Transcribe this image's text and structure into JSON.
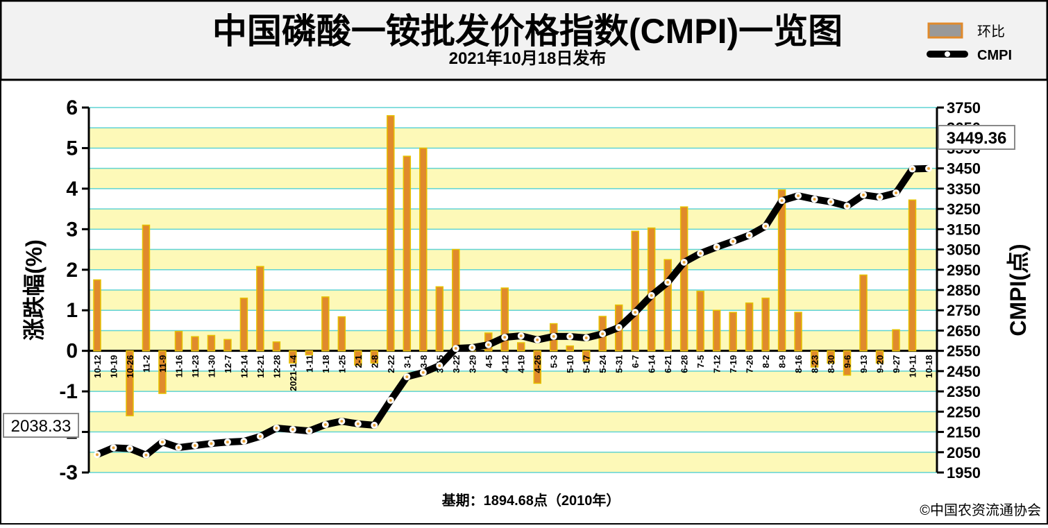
{
  "chart_data": {
    "type": "bar-line",
    "title": "中国磷酸一铵批发价格指数(CMPI)一览图",
    "subtitle": "2021年10月18日发布",
    "ylabel": "涨跌幅(%)",
    "y2label": "CMPI(点)",
    "note": "基期：1894.68点（2010年）",
    "source": "©中国农资流通协会",
    "categories": [
      "10-12",
      "10-19",
      "10-26",
      "11-2",
      "11-9",
      "11-16",
      "11-23",
      "11-30",
      "12-7",
      "12-14",
      "12-21",
      "12-28",
      "2021-1-4",
      "1-11",
      "1-18",
      "1-25",
      "2-1",
      "2-8",
      "2-22",
      "3-1",
      "3-8",
      "3-15",
      "3-22",
      "3-29",
      "4-5",
      "4-12",
      "4-19",
      "4-26",
      "5-3",
      "5-10",
      "5-17",
      "5-24",
      "5-31",
      "6-7",
      "6-14",
      "6-21",
      "6-28",
      "7-5",
      "7-12",
      "7-19",
      "7-26",
      "8-2",
      "8-9",
      "8-16",
      "8-23",
      "8-30",
      "9-6",
      "9-13",
      "9-20",
      "9-27",
      "10-11",
      "10-18"
    ],
    "series": [
      {
        "name": "环比",
        "color": "#e08a2c",
        "values": [
          1.75,
          0,
          -1.6,
          3.1,
          -1.05,
          0.48,
          0.35,
          0.38,
          0.28,
          1.3,
          2.08,
          0.22,
          -0.3,
          -0.1,
          1.33,
          0.84,
          -0.35,
          -0.3,
          5.8,
          4.8,
          5.0,
          1.58,
          2.5,
          0.05,
          0.44,
          1.55,
          0.2,
          -0.8,
          0.67,
          0.12,
          -0.25,
          0.85,
          1.13,
          2.95,
          3.03,
          2.25,
          3.55,
          1.47,
          1.0,
          0.95,
          1.18,
          1.3,
          3.97,
          0.95,
          -0.4,
          -0.3,
          -0.6,
          1.87,
          -0.3,
          0.52,
          3.72,
          0
        ]
      },
      {
        "name": "CMPI",
        "color": "#000000",
        "axis": "y2",
        "values": [
          2038.33,
          2072,
          2068,
          2036,
          2100,
          2073,
          2083,
          2093,
          2100,
          2104,
          2128,
          2169,
          2162,
          2155,
          2186,
          2203,
          2190,
          2183,
          2306,
          2422,
          2443,
          2477,
          2562,
          2566,
          2580,
          2617,
          2624,
          2604,
          2621,
          2621,
          2614,
          2634,
          2665,
          2740,
          2823,
          2888,
          2987,
          3031,
          3062,
          3090,
          3120,
          3165,
          3291,
          3315,
          3298,
          3285,
          3264,
          3319,
          3308,
          3329,
          3447,
          3449.36
        ]
      }
    ],
    "ylim": [
      -3,
      6
    ],
    "yticks": [
      -3,
      -2,
      -1,
      0,
      1,
      2,
      3,
      4,
      5,
      6
    ],
    "y2lim": [
      1950,
      3750
    ],
    "y2ticks": [
      1950,
      2050,
      2150,
      2250,
      2350,
      2450,
      2550,
      2650,
      2750,
      2850,
      2950,
      3050,
      3150,
      3250,
      3350,
      3450,
      3550,
      3650,
      3750
    ],
    "grid": true
  }
}
